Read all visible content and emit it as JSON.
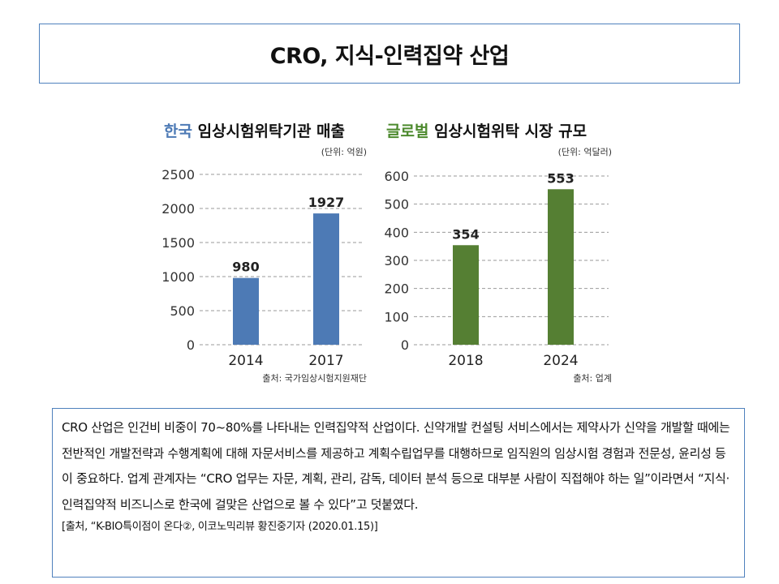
{
  "title": "CRO, 지식-인력집약 산업",
  "chart_data": [
    {
      "type": "bar",
      "title_accent": "한국",
      "title_rest": " 임상시험위탁기관 매출",
      "unit": "(단위: 억원)",
      "categories": [
        "2014",
        "2017"
      ],
      "values": [
        980,
        1927
      ],
      "ylim": [
        0,
        2500
      ],
      "yticks": [
        0,
        500,
        1000,
        1500,
        2000,
        2500
      ],
      "grid": true,
      "source": "출처: 국가임상시험지원재단",
      "colors": {
        "accent": "#4d7ab5",
        "bar": "#4d7ab5"
      }
    },
    {
      "type": "bar",
      "title_accent": "글로벌",
      "title_rest": " 임상시험위탁 시장 규모",
      "unit": "(단위: 억달러)",
      "categories": [
        "2018",
        "2024"
      ],
      "values": [
        354,
        553
      ],
      "ylim": [
        0,
        600
      ],
      "yticks": [
        0,
        100,
        200,
        300,
        400,
        500,
        600
      ],
      "grid": true,
      "source": "출처: 업계",
      "colors": {
        "accent": "#4d8a2e",
        "bar": "#557f33"
      }
    }
  ],
  "body": {
    "paragraph": "CRO 산업은 인건비 비중이 70~80%를 나타내는 인력집약적 산업이다. 신약개발 컨설팅 서비스에서는 제약사가 신약을 개발할 때에는 전반적인 개발전략과 수행계획에 대해 자문서비스를 제공하고 계획수립업무를 대행하므로 임직원의 임상시험 경험과 전문성, 윤리성 등이 중요하다. 업계 관계자는 “CRO 업무는 자문, 계획, 관리, 감독, 데이터 분석 등으로 대부분 사람이 직접해야 하는 일”이라면서 “지식·인력집약적 비즈니스로 한국에 걸맞은 산업으로 볼 수 있다”고 덧붙였다.",
    "citation": "[출처, “K-BIO특이점이 온다②, 이코노믹리뷰 황진중기자 (2020.01.15)]"
  }
}
